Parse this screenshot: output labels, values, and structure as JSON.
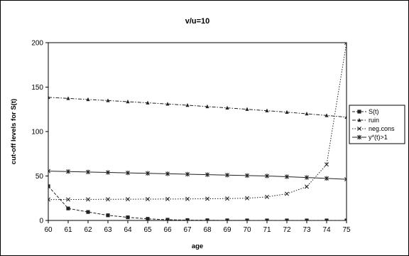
{
  "chart_data": {
    "type": "line",
    "title": "v/u=10",
    "xlabel": "age",
    "ylabel": "cut-off levels for S(t)",
    "x": [
      60,
      61,
      62,
      63,
      64,
      65,
      66,
      67,
      68,
      69,
      70,
      71,
      72,
      73,
      74,
      75
    ],
    "xlim": [
      60,
      75
    ],
    "ylim": [
      0,
      200
    ],
    "y_ticks": [
      0,
      50,
      100,
      150,
      200
    ],
    "grid": false,
    "legend_position": "right",
    "series": [
      {
        "name": "S(t)",
        "marker": "square",
        "dash": "dash",
        "values": [
          38.5,
          13.5,
          9.5,
          5.8,
          3.5,
          1.8,
          0.8,
          0.4,
          0.2,
          0.1,
          0.05,
          0.02,
          0.01,
          0,
          0,
          0
        ]
      },
      {
        "name": "ruin",
        "marker": "triangle",
        "dash": "dashdot",
        "values": [
          138.5,
          137.3,
          136.1,
          134.9,
          133.6,
          132.3,
          131.0,
          129.6,
          128.1,
          126.6,
          125.1,
          123.5,
          121.8,
          120.0,
          118.1,
          116.2
        ]
      },
      {
        "name": "neg.cons",
        "marker": "x",
        "dash": "dot",
        "values": [
          23.5,
          23.6,
          23.7,
          23.8,
          23.9,
          24.0,
          24.1,
          24.2,
          24.4,
          24.6,
          25.0,
          26.5,
          30.0,
          38.0,
          63.0,
          200
        ]
      },
      {
        "name": "y*(t)>1",
        "marker": "star",
        "dash": "solid",
        "values": [
          55.5,
          55.0,
          54.5,
          54.0,
          53.5,
          53.0,
          52.5,
          52.0,
          51.5,
          51.0,
          50.5,
          50.0,
          49.2,
          48.3,
          47.3,
          46.3
        ]
      }
    ]
  }
}
